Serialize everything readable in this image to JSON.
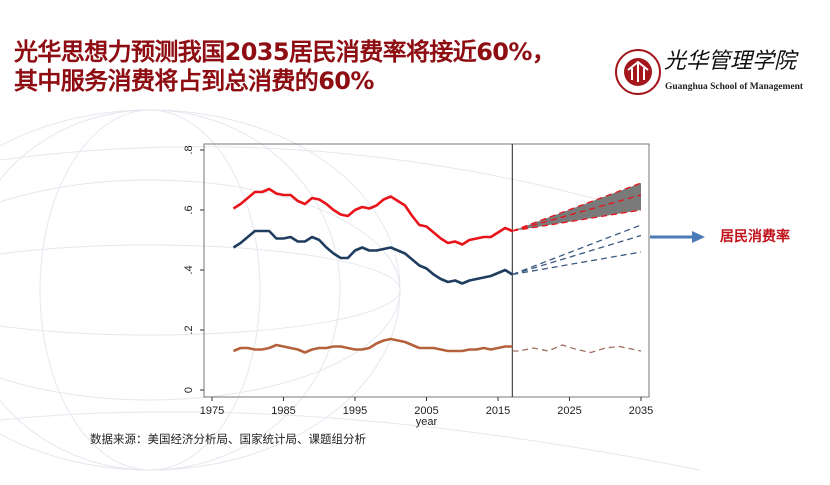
{
  "slide": {
    "title_line1": "光华思想力预测我国2035居民消费率将接近60%，",
    "title_line2": "其中服务消费将占到总消费的60%",
    "logo": {
      "chinese": "光华管理学院",
      "english": "Guanghua School of Management",
      "seal_text": "PEKING UNIVERSITY 1898"
    },
    "source": "数据来源：美国经济分析局、国家统计局、课题组分析",
    "arrow_label": "居民消费率",
    "colors": {
      "title": "#8e0d12",
      "arrow": "#4a7ab8",
      "arrow_label": "#c0121b"
    }
  },
  "chart_data": {
    "type": "line",
    "xlabel": "year",
    "ylabel": "",
    "xlim": [
      1975,
      2035
    ],
    "ylim": [
      0,
      0.8
    ],
    "x_ticks": [
      "1975",
      "1985",
      "1995",
      "2005",
      "2015",
      "2025",
      "2035"
    ],
    "y_ticks": [
      "0",
      ".2",
      ".4",
      ".6",
      ".8"
    ],
    "grid": false,
    "forecast_start": 2017,
    "x": [
      1978,
      1979,
      1980,
      1981,
      1982,
      1983,
      1984,
      1985,
      1986,
      1987,
      1988,
      1989,
      1990,
      1991,
      1992,
      1993,
      1994,
      1995,
      1996,
      1997,
      1998,
      1999,
      2000,
      2001,
      2002,
      2003,
      2004,
      2005,
      2006,
      2007,
      2008,
      2009,
      2010,
      2011,
      2012,
      2013,
      2014,
      2015,
      2016,
      2017
    ],
    "series": [
      {
        "color": "#e8141c",
        "values": [
          0.605,
          0.62,
          0.64,
          0.66,
          0.66,
          0.67,
          0.655,
          0.65,
          0.65,
          0.63,
          0.62,
          0.64,
          0.635,
          0.62,
          0.6,
          0.585,
          0.58,
          0.6,
          0.61,
          0.605,
          0.615,
          0.635,
          0.645,
          0.63,
          0.615,
          0.58,
          0.55,
          0.545,
          0.525,
          0.505,
          0.49,
          0.495,
          0.485,
          0.5,
          0.505,
          0.51,
          0.51,
          0.525,
          0.54,
          0.53
        ]
      },
      {
        "color": "#1f3d5e",
        "values": [
          0.475,
          0.49,
          0.51,
          0.53,
          0.53,
          0.53,
          0.505,
          0.505,
          0.51,
          0.495,
          0.495,
          0.51,
          0.5,
          0.475,
          0.455,
          0.44,
          0.44,
          0.465,
          0.475,
          0.465,
          0.465,
          0.47,
          0.475,
          0.465,
          0.455,
          0.435,
          0.415,
          0.405,
          0.385,
          0.37,
          0.36,
          0.365,
          0.355,
          0.365,
          0.37,
          0.375,
          0.38,
          0.39,
          0.4,
          0.385
        ]
      },
      {
        "color": "#b5623c",
        "values": [
          0.13,
          0.14,
          0.14,
          0.135,
          0.135,
          0.14,
          0.15,
          0.145,
          0.14,
          0.135,
          0.125,
          0.135,
          0.14,
          0.14,
          0.145,
          0.145,
          0.14,
          0.135,
          0.135,
          0.14,
          0.155,
          0.165,
          0.17,
          0.165,
          0.16,
          0.15,
          0.14,
          0.14,
          0.14,
          0.135,
          0.13,
          0.13,
          0.13,
          0.135,
          0.135,
          0.14,
          0.135,
          0.14,
          0.145,
          0.145
        ]
      }
    ],
    "forecasts": [
      {
        "color": "#e8141c",
        "band": true,
        "x": [
          2017,
          2035
        ],
        "upper": [
          0.53,
          0.69
        ],
        "mid": [
          0.53,
          0.65
        ],
        "lower": [
          0.53,
          0.6
        ]
      },
      {
        "color": "#3a5a80",
        "band": false,
        "x": [
          2017,
          2035
        ],
        "upper": [
          0.385,
          0.55
        ],
        "mid": [
          0.385,
          0.515
        ],
        "lower": [
          0.385,
          0.46
        ]
      },
      {
        "color": "#a07060",
        "x": [
          2017,
          2018,
          2020,
          2022,
          2024,
          2026,
          2028,
          2030,
          2032,
          2035
        ],
        "values": [
          0.13,
          0.13,
          0.14,
          0.13,
          0.15,
          0.135,
          0.125,
          0.14,
          0.145,
          0.13
        ]
      }
    ]
  }
}
